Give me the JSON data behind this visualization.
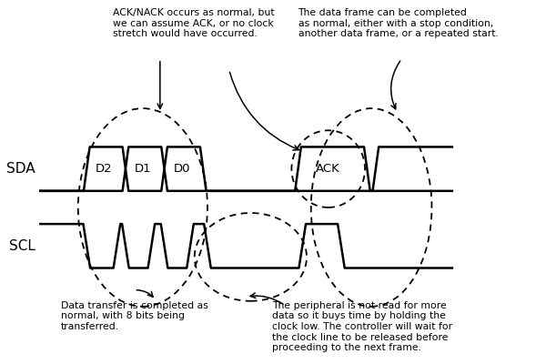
{
  "sda_label": "SDA",
  "scl_label": "SCL",
  "annotation_top_left": "ACK/NACK occurs as normal, but\nwe can assume ACK, or no clock\nstretch would have occurred.",
  "annotation_top_right": "The data frame can be completed\nas normal, either with a stop condition,\nanother data frame, or a repeated start.",
  "annotation_bot_left": "Data transfer is completed as\nnormal, with 8 bits being\ntransferred.",
  "annotation_bot_right": "The peripheral is not read for more\ndata so it buys time by holding the\nclock low. The controller will wait for\nthe clock line to be released before\nproceeding to the next frame.",
  "line_color": "#000000",
  "bg_color": "#ffffff",
  "fontsize": 7.8,
  "label_fontsize": 11,
  "bit_label_fontsize": 9.5,
  "sda_y_low": 5.5,
  "sda_y_high": 7.5,
  "scl_y_low": 2.0,
  "scl_y_high": 4.0,
  "xlim": [
    -2,
    58
  ],
  "ylim": [
    -1.5,
    14
  ]
}
